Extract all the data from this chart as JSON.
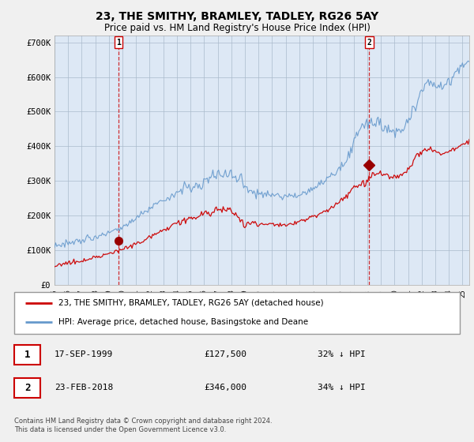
{
  "title": "23, THE SMITHY, BRAMLEY, TADLEY, RG26 5AY",
  "subtitle": "Price paid vs. HM Land Registry's House Price Index (HPI)",
  "ylim": [
    0,
    720000
  ],
  "yticks": [
    0,
    100000,
    200000,
    300000,
    400000,
    500000,
    600000,
    700000
  ],
  "ytick_labels": [
    "£0",
    "£100K",
    "£200K",
    "£300K",
    "£400K",
    "£500K",
    "£600K",
    "£700K"
  ],
  "hpi_color": "#6699cc",
  "price_color": "#cc0000",
  "plot_bg_color": "#ddeeff",
  "background_color": "#f0f0f0",
  "marker1_price": 127500,
  "marker1_text": "17-SEP-1999",
  "marker1_amount": "£127,500",
  "marker1_hpi": "32% ↓ HPI",
  "marker2_price": 346000,
  "marker2_text": "23-FEB-2018",
  "marker2_amount": "£346,000",
  "marker2_hpi": "34% ↓ HPI",
  "legend_line1": "23, THE SMITHY, BRAMLEY, TADLEY, RG26 5AY (detached house)",
  "legend_line2": "HPI: Average price, detached house, Basingstoke and Deane",
  "footer": "Contains HM Land Registry data © Crown copyright and database right 2024.\nThis data is licensed under the Open Government Licence v3.0."
}
